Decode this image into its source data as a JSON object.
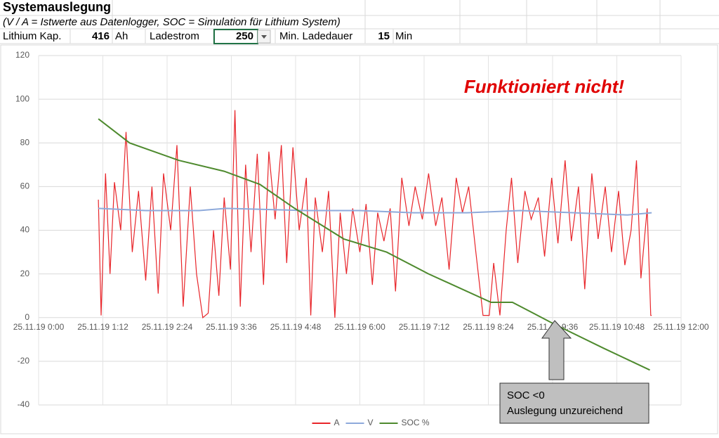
{
  "sheet": {
    "title": "Systemauslegung",
    "subtitle": "(V / A = Istwerte aus Datenlogger, SOC = Simulation für Lithium System)",
    "row": {
      "capacity_label": "Lithium Kap.",
      "capacity": 416,
      "capacity_unit": "Ah",
      "current_label": "Ladestrom",
      "current": 250,
      "duration_label": "Min. Ladedauer",
      "duration": 15,
      "duration_unit": "Min"
    }
  },
  "chart_data": {
    "type": "line",
    "xlim": [
      "25.11.19 0:00",
      "25.11.19 12:00"
    ],
    "xticks": [
      "25.11.19 0:00",
      "25.11.19 1:12",
      "25.11.19 2:24",
      "25.11.19 3:36",
      "25.11.19 4:48",
      "25.11.19 6:00",
      "25.11.19 7:12",
      "25.11.19 8:24",
      "25.11.19 9:36",
      "25.11.19 10:48",
      "25.11.19 12:00"
    ],
    "ylim": [
      -40,
      120
    ],
    "yticks": [
      -40,
      -20,
      0,
      20,
      40,
      60,
      80,
      100,
      120
    ],
    "grid": true,
    "legend": "bottom",
    "series": [
      {
        "name": "A",
        "color": "#e8252a",
        "x": [
          "25.11.19 1:07",
          "25.11.19 1:10",
          "25.11.19 1:15",
          "25.11.19 1:20",
          "25.11.19 1:25",
          "25.11.19 1:32",
          "25.11.19 1:38",
          "25.11.19 1:45",
          "25.11.19 1:52",
          "25.11.19 2:00",
          "25.11.19 2:07",
          "25.11.19 2:14",
          "25.11.19 2:20",
          "25.11.19 2:28",
          "25.11.19 2:35",
          "25.11.19 2:42",
          "25.11.19 2:50",
          "25.11.19 2:57",
          "25.11.19 3:04",
          "25.11.19 3:10",
          "25.11.19 3:16",
          "25.11.19 3:22",
          "25.11.19 3:28",
          "25.11.19 3:35",
          "25.11.19 3:40",
          "25.11.19 3:46",
          "25.11.19 3:52",
          "25.11.19 3:58",
          "25.11.19 4:05",
          "25.11.19 4:12",
          "25.11.19 4:18",
          "25.11.19 4:25",
          "25.11.19 4:32",
          "25.11.19 4:38",
          "25.11.19 4:45",
          "25.11.19 4:52",
          "25.11.19 5:00",
          "25.11.19 5:05",
          "25.11.19 5:10",
          "25.11.19 5:18",
          "25.11.19 5:25",
          "25.11.19 5:32",
          "25.11.19 5:38",
          "25.11.19 5:45",
          "25.11.19 5:52",
          "25.11.19 6:00",
          "25.11.19 6:07",
          "25.11.19 6:14",
          "25.11.19 6:20",
          "25.11.19 6:27",
          "25.11.19 6:34",
          "25.11.19 6:40",
          "25.11.19 6:47",
          "25.11.19 6:55",
          "25.11.19 7:02",
          "25.11.19 7:10",
          "25.11.19 7:17",
          "25.11.19 7:25",
          "25.11.19 7:32",
          "25.11.19 7:40",
          "25.11.19 7:48",
          "25.11.19 7:55",
          "25.11.19 8:02",
          "25.11.19 8:10",
          "25.11.19 8:18",
          "25.11.19 8:25",
          "25.11.19 8:30",
          "25.11.19 8:37",
          "25.11.19 8:44",
          "25.11.19 8:50",
          "25.11.19 8:57",
          "25.11.19 9:05",
          "25.11.19 9:12",
          "25.11.19 9:20",
          "25.11.19 9:27",
          "25.11.19 9:35",
          "25.11.19 9:42",
          "25.11.19 9:50",
          "25.11.19 9:57",
          "25.11.19 10:05",
          "25.11.19 10:12",
          "25.11.19 10:20",
          "25.11.19 10:27",
          "25.11.19 10:35",
          "25.11.19 10:42",
          "25.11.19 10:50",
          "25.11.19 10:57",
          "25.11.19 11:04",
          "25.11.19 11:10",
          "25.11.19 11:15",
          "25.11.19 11:22",
          "25.11.19 11:26",
          "25.11.19 11:27"
        ],
        "values": [
          54,
          1,
          66,
          20,
          62,
          40,
          85,
          30,
          58,
          17,
          60,
          11,
          66,
          40,
          79,
          5,
          60,
          20,
          0,
          2,
          40,
          10,
          55,
          22,
          95,
          5,
          70,
          30,
          75,
          15,
          76,
          45,
          79,
          25,
          78,
          40,
          64,
          1,
          55,
          30,
          58,
          0,
          48,
          20,
          50,
          30,
          52,
          15,
          48,
          35,
          50,
          12,
          64,
          42,
          60,
          45,
          66,
          42,
          55,
          22,
          64,
          48,
          60,
          30,
          1,
          1,
          25,
          1,
          40,
          64,
          25,
          58,
          45,
          55,
          28,
          64,
          34,
          72,
          35,
          60,
          13,
          66,
          36,
          60,
          30,
          58,
          24,
          40,
          72,
          18,
          50,
          1,
          1
        ]
      },
      {
        "name": "V",
        "color": "#8eaadb",
        "x": [
          "25.11.19 1:07",
          "25.11.19 2:00",
          "25.11.19 3:00",
          "25.11.19 3:30",
          "25.11.19 5:00",
          "25.11.19 6:00",
          "25.11.19 7:00",
          "25.11.19 8:00",
          "25.11.19 9:00",
          "25.11.19 10:00",
          "25.11.19 11:00",
          "25.11.19 11:27"
        ],
        "values": [
          50,
          49,
          49,
          50,
          49,
          49,
          48,
          48,
          49,
          48,
          47,
          48
        ]
      },
      {
        "name": "SOC %",
        "color": "#4e8a2e",
        "x": [
          "25.11.19 1:07",
          "25.11.19 1:42",
          "25.11.19 2:37",
          "25.11.19 3:28",
          "25.11.19 4:08",
          "25.11.19 4:47",
          "25.11.19 5:42",
          "25.11.19 6:30",
          "25.11.19 7:17",
          "25.11.19 8:27",
          "25.11.19 8:51",
          "25.11.19 9:38",
          "25.11.19 10:33",
          "25.11.19 11:25"
        ],
        "values": [
          91,
          80,
          72,
          67,
          61,
          50,
          36,
          30,
          20,
          7,
          7,
          -3,
          -14,
          -24
        ]
      }
    ],
    "annotations": {
      "headline": "Funktioniert nicht!",
      "callout": [
        "SOC <0",
        "Auslegung unzureichend"
      ]
    }
  }
}
